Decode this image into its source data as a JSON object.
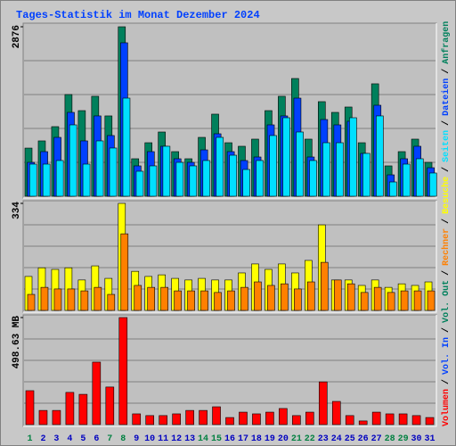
{
  "title": "Tages-Statistik im Monat Dezember 2024",
  "legend_separator": "/",
  "chart_data": [
    {
      "type": "bar",
      "categories": [
        "1",
        "2",
        "3",
        "4",
        "5",
        "6",
        "7",
        "8",
        "9",
        "10",
        "11",
        "12",
        "13",
        "14",
        "15",
        "16",
        "17",
        "18",
        "19",
        "20",
        "21",
        "22",
        "23",
        "24",
        "25",
        "26",
        "27",
        "28",
        "29",
        "30",
        "31"
      ],
      "category_colors": [
        "#008040",
        "#0000c0",
        "#0000c0",
        "#0000c0",
        "#0000c0",
        "#0000c0",
        "#008040",
        "#008040",
        "#0000c0",
        "#0000c0",
        "#0000c0",
        "#0000c0",
        "#0000c0",
        "#008040",
        "#008040",
        "#0000c0",
        "#0000c0",
        "#0000c0",
        "#0000c0",
        "#0000c0",
        "#008040",
        "#008040",
        "#0000c0",
        "#0000c0",
        "#0000c0",
        "#0000c0",
        "#0000c0",
        "#008040",
        "#008040",
        "#0000c0",
        "#0000c0"
      ],
      "ylim": [
        0,
        2876
      ],
      "yticks": [
        2876
      ],
      "series": [
        {
          "name": "Anfragen",
          "color": "#00805c",
          "values": [
            817,
            939,
            1181,
            1726,
            1453,
            1696,
            1363,
            2876,
            636,
            908,
            1090,
            757,
            636,
            999,
            1393,
            908,
            848,
            969,
            1453,
            1696,
            1998,
            969,
            1605,
            1423,
            1514,
            908,
            1908,
            515,
            757,
            969,
            575
          ]
        },
        {
          "name": "Dateien",
          "color": "#0040ff",
          "values": [
            575,
            757,
            999,
            1423,
            939,
            1363,
            1030,
            2604,
            515,
            757,
            848,
            636,
            575,
            787,
            1060,
            757,
            606,
            666,
            1211,
            1363,
            1665,
            666,
            1302,
            1211,
            1272,
            727,
            1544,
            363,
            636,
            848,
            484
          ]
        },
        {
          "name": "Seiten",
          "color": "#00e0ff",
          "values": [
            545,
            545,
            606,
            1211,
            545,
            939,
            818,
            1665,
            424,
            515,
            848,
            575,
            515,
            606,
            999,
            696,
            454,
            606,
            1030,
            1332,
            1090,
            606,
            908,
            908,
            1332,
            727,
            1363,
            242,
            545,
            636,
            394
          ]
        }
      ]
    },
    {
      "type": "bar",
      "ylim": [
        0,
        334
      ],
      "yticks": [
        334
      ],
      "series": [
        {
          "name": "Besuche",
          "color": "#ffff00",
          "values": [
            106,
            133,
            128,
            133,
            95,
            139,
            100,
            334,
            122,
            106,
            111,
            100,
            95,
            100,
            95,
            95,
            117,
            145,
            128,
            145,
            117,
            156,
            267,
            95,
            95,
            78,
            95,
            72,
            83,
            78,
            89
          ]
        },
        {
          "name": "Rechner",
          "color": "#ff8000",
          "values": [
            50,
            72,
            67,
            67,
            61,
            72,
            50,
            239,
            78,
            72,
            72,
            61,
            61,
            61,
            56,
            61,
            72,
            89,
            78,
            83,
            67,
            89,
            150,
            95,
            83,
            56,
            72,
            56,
            61,
            61,
            61
          ]
        }
      ]
    },
    {
      "type": "bar",
      "ylim": [
        0,
        498.63
      ],
      "yticks": [
        {
          "value": 498.63,
          "label": "498.63 MB"
        }
      ],
      "series": [
        {
          "name": "Volumen",
          "color": "#ff0000",
          "values": [
            158,
            66,
            66,
            150,
            141,
            291,
            175,
            498.63,
            50,
            42,
            42,
            50,
            66,
            66,
            83,
            33,
            58,
            50,
            58,
            75,
            42,
            58,
            199,
            108,
            42,
            17,
            58,
            50,
            50,
            42,
            33
          ]
        }
      ],
      "extra_legend": [
        {
          "name": "Vol. In",
          "color": "#0040ff"
        },
        {
          "name": "Vol. Out",
          "color": "#00805c"
        }
      ]
    }
  ]
}
